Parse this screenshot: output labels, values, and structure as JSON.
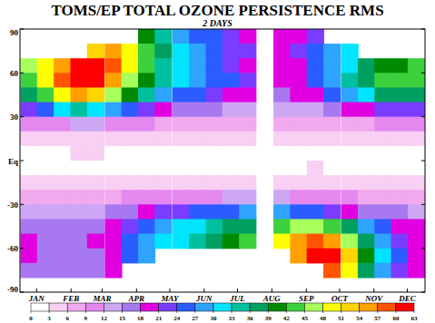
{
  "chart_data": {
    "type": "heatmap",
    "title": "TOMS/EP TOTAL OZONE PERSISTENCE RMS",
    "subtitle": "2 DAYS",
    "x": [
      8,
      23,
      38,
      53,
      68,
      84,
      99,
      114,
      129,
      145,
      160,
      175,
      190,
      205,
      221,
      236,
      251,
      266,
      281,
      297,
      312,
      327,
      342,
      357
    ],
    "xlim": [
      0,
      365
    ],
    "xticks": [
      {
        "value": 15,
        "label": "JAN"
      },
      {
        "value": 46,
        "label": "FEB"
      },
      {
        "value": 74,
        "label": "MAR"
      },
      {
        "value": 105,
        "label": "APR"
      },
      {
        "value": 135,
        "label": "MAY"
      },
      {
        "value": 166,
        "label": "JUN"
      },
      {
        "value": 196,
        "label": "JUL"
      },
      {
        "value": 227,
        "label": "AUG"
      },
      {
        "value": 258,
        "label": "SEP"
      },
      {
        "value": 288,
        "label": "OCT"
      },
      {
        "value": 319,
        "label": "NOV"
      },
      {
        "value": 349,
        "label": "DEC"
      }
    ],
    "y": [
      85,
      75,
      65,
      55,
      45,
      35,
      25,
      15,
      5,
      -5,
      -15,
      -25,
      -35,
      -45,
      -55,
      -65,
      -75,
      -85
    ],
    "ylim": [
      -90,
      90
    ],
    "yticks": [
      -90,
      -60,
      -30,
      {
        "value": 0,
        "label": "Eq"
      },
      30,
      60,
      90
    ],
    "z": [
      [
        null,
        null,
        null,
        null,
        null,
        null,
        null,
        40,
        34,
        28,
        26,
        24,
        22,
        20,
        null,
        20,
        20,
        22,
        null,
        null,
        null,
        null,
        null,
        null
      ],
      [
        null,
        null,
        null,
        null,
        52,
        55,
        48,
        42,
        36,
        30,
        27,
        25,
        23,
        21,
        null,
        20,
        21,
        24,
        27,
        30,
        null,
        null,
        null,
        null
      ],
      [
        45,
        48,
        55,
        60,
        61,
        57,
        48,
        42,
        34,
        30,
        27,
        24,
        22,
        20,
        null,
        19,
        20,
        24,
        28,
        32,
        36,
        40,
        40,
        43
      ],
      [
        44,
        50,
        58,
        62,
        60,
        55,
        46,
        40,
        33,
        30,
        28,
        26,
        24,
        22,
        null,
        20,
        20,
        24,
        28,
        33,
        38,
        42,
        42,
        44
      ],
      [
        36,
        42,
        50,
        55,
        52,
        46,
        40,
        34,
        28,
        26,
        24,
        22,
        20,
        19,
        null,
        17,
        18,
        20,
        24,
        28,
        32,
        36,
        36,
        36
      ],
      [
        22,
        26,
        30,
        34,
        32,
        28,
        24,
        22,
        18,
        17,
        16,
        15,
        14,
        13,
        null,
        12,
        13,
        14,
        16,
        18,
        20,
        22,
        22,
        22
      ],
      [
        9,
        10,
        11,
        12,
        12,
        11,
        10,
        9,
        8,
        8,
        7,
        7,
        7,
        6,
        null,
        6,
        6,
        7,
        7,
        8,
        8,
        9,
        9,
        9
      ],
      [
        4,
        4,
        5,
        5,
        5,
        4,
        4,
        4,
        4,
        4,
        3,
        3,
        3,
        3,
        null,
        3,
        3,
        3,
        3,
        4,
        4,
        4,
        4,
        4
      ],
      [
        2,
        2,
        2,
        3,
        3,
        2,
        2,
        2,
        2,
        2,
        2,
        2,
        2,
        2,
        null,
        2,
        2,
        2,
        2,
        2,
        2,
        2,
        2,
        2
      ],
      [
        2,
        2,
        2,
        2,
        2,
        2,
        2,
        2,
        2,
        2,
        2,
        2,
        2,
        2,
        null,
        2,
        2,
        3,
        2,
        2,
        2,
        2,
        2,
        2
      ],
      [
        4,
        4,
        4,
        4,
        4,
        4,
        4,
        4,
        4,
        4,
        4,
        4,
        4,
        4,
        null,
        4,
        4,
        4,
        4,
        4,
        4,
        4,
        4,
        4
      ],
      [
        8,
        8,
        8,
        8,
        8,
        8,
        9,
        9,
        10,
        10,
        11,
        11,
        12,
        12,
        null,
        12,
        11,
        11,
        10,
        9,
        8,
        8,
        8,
        8
      ],
      [
        14,
        13,
        13,
        13,
        14,
        15,
        17,
        19,
        21,
        22,
        24,
        25,
        26,
        27,
        null,
        27,
        26,
        25,
        22,
        19,
        17,
        16,
        15,
        14
      ],
      [
        17,
        16,
        16,
        16,
        17,
        19,
        22,
        25,
        28,
        30,
        32,
        34,
        36,
        38,
        null,
        42,
        45,
        46,
        42,
        36,
        28,
        24,
        20,
        18
      ],
      [
        18,
        17,
        17,
        17,
        18,
        20,
        24,
        27,
        30,
        32,
        34,
        36,
        40,
        44,
        null,
        50,
        54,
        58,
        56,
        46,
        36,
        28,
        22,
        20
      ],
      [
        18,
        17,
        16,
        16,
        17,
        20,
        24,
        27,
        null,
        null,
        null,
        null,
        null,
        null,
        null,
        null,
        55,
        60,
        62,
        52,
        40,
        30,
        24,
        20
      ],
      [
        16,
        15,
        15,
        15,
        16,
        18,
        null,
        null,
        null,
        null,
        null,
        null,
        null,
        null,
        null,
        null,
        null,
        null,
        58,
        50,
        38,
        28,
        22,
        18
      ],
      [
        null,
        null,
        null,
        null,
        null,
        null,
        null,
        null,
        null,
        null,
        null,
        null,
        null,
        null,
        null,
        null,
        null,
        null,
        null,
        null,
        null,
        null,
        null,
        null
      ]
    ],
    "colorbar": {
      "range": [
        0,
        63
      ],
      "ticks": [
        0,
        3,
        6,
        9,
        12,
        15,
        18,
        21,
        24,
        27,
        30,
        33,
        36,
        39,
        42,
        45,
        48,
        51,
        54,
        57,
        60,
        63
      ],
      "colors": [
        "#ffffff",
        "#f8d0f4",
        "#f0a8ee",
        "#e488f0",
        "#cca8f4",
        "#a878f0",
        "#e000e0",
        "#7a3cff",
        "#2a5cff",
        "#2ea4ff",
        "#00e4ff",
        "#00c0a0",
        "#00a060",
        "#008a00",
        "#3cd03c",
        "#a8ff5c",
        "#ffff00",
        "#ffd400",
        "#ffa000",
        "#ff5400",
        "#ff0000"
      ]
    },
    "grid": false
  }
}
